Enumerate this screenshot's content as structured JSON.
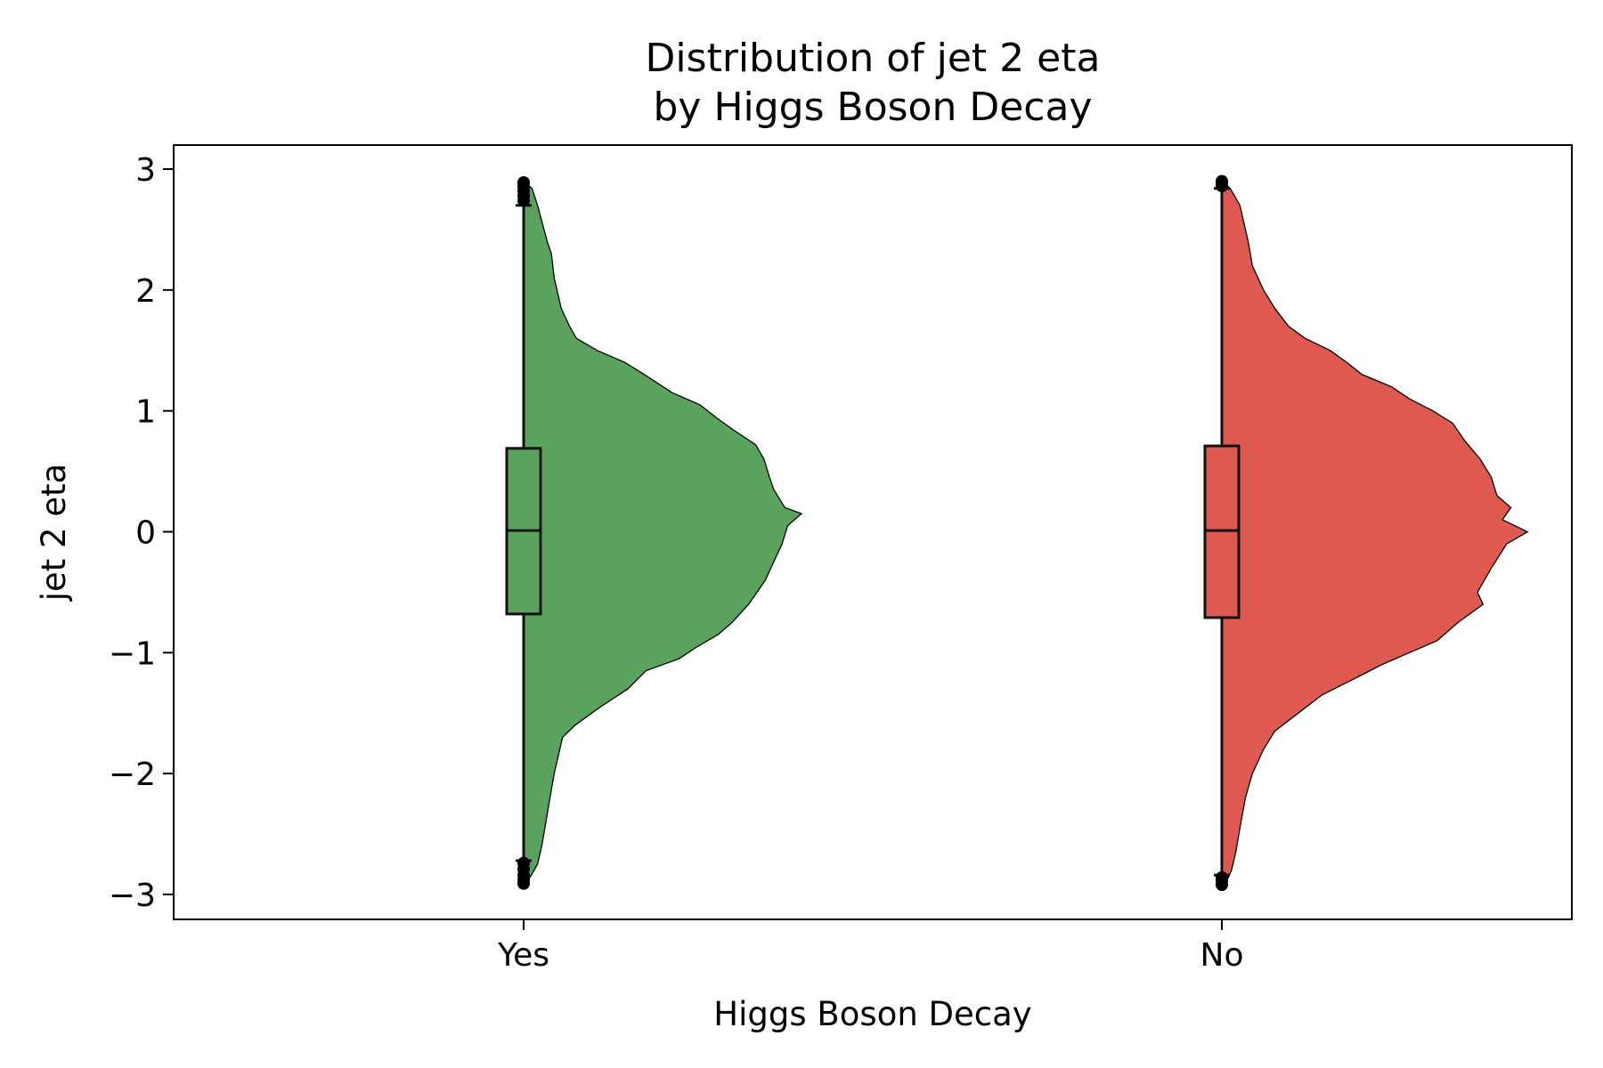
{
  "chart_data": {
    "type": "violin",
    "title": "Distribution of jet 2 eta",
    "subtitle": "by Higgs Boson Decay",
    "xlabel": "Higgs Boson Decay",
    "ylabel": "jet 2 eta",
    "ylim": [
      -3.2,
      3.2
    ],
    "yticks": [
      3,
      2,
      1,
      0,
      -1,
      -2,
      -3
    ],
    "ytick_labels": [
      "3",
      "2",
      "1",
      "0",
      "−1",
      "−2",
      "−3"
    ],
    "categories": [
      "Yes",
      "No"
    ],
    "series": [
      {
        "category": "Yes",
        "color": "#59a35c",
        "box": {
          "whisker_low": -2.72,
          "q1": -0.68,
          "median": 0.01,
          "q3": 0.69,
          "whisker_high": 2.7
        },
        "outliers": [
          2.74,
          2.78,
          2.82,
          2.86,
          2.89,
          -2.74,
          -2.79,
          -2.84,
          -2.88,
          -2.91
        ],
        "density": [
          [
            2.9,
            0.0
          ],
          [
            2.84,
            0.06
          ],
          [
            2.7,
            0.1
          ],
          [
            2.4,
            0.17
          ],
          [
            2.3,
            0.2
          ],
          [
            2.1,
            0.22
          ],
          [
            1.85,
            0.27
          ],
          [
            1.7,
            0.33
          ],
          [
            1.6,
            0.38
          ],
          [
            1.5,
            0.53
          ],
          [
            1.4,
            0.73
          ],
          [
            1.3,
            0.87
          ],
          [
            1.15,
            1.07
          ],
          [
            1.05,
            1.27
          ],
          [
            0.95,
            1.38
          ],
          [
            0.85,
            1.5
          ],
          [
            0.72,
            1.67
          ],
          [
            0.6,
            1.73
          ],
          [
            0.45,
            1.77
          ],
          [
            0.35,
            1.8
          ],
          [
            0.2,
            1.88
          ],
          [
            0.15,
            2.0
          ],
          [
            0.05,
            1.9
          ],
          [
            -0.1,
            1.86
          ],
          [
            -0.2,
            1.82
          ],
          [
            -0.4,
            1.74
          ],
          [
            -0.6,
            1.62
          ],
          [
            -0.75,
            1.5
          ],
          [
            -0.85,
            1.4
          ],
          [
            -0.95,
            1.25
          ],
          [
            -1.05,
            1.12
          ],
          [
            -1.15,
            0.88
          ],
          [
            -1.3,
            0.75
          ],
          [
            -1.45,
            0.55
          ],
          [
            -1.6,
            0.37
          ],
          [
            -1.7,
            0.28
          ],
          [
            -1.85,
            0.25
          ],
          [
            -2.0,
            0.22
          ],
          [
            -2.2,
            0.19
          ],
          [
            -2.4,
            0.16
          ],
          [
            -2.6,
            0.13
          ],
          [
            -2.75,
            0.1
          ],
          [
            -2.85,
            0.05
          ],
          [
            -2.92,
            0.0
          ]
        ]
      },
      {
        "category": "No",
        "color": "#de5a50",
        "box": {
          "whisker_low": -2.84,
          "q1": -0.71,
          "median": 0.01,
          "q3": 0.71,
          "whisker_high": 2.84
        },
        "outliers": [
          2.86,
          2.88,
          2.9,
          -2.86,
          -2.89,
          -2.92
        ],
        "density": [
          [
            2.9,
            0.0
          ],
          [
            2.84,
            0.06
          ],
          [
            2.7,
            0.13
          ],
          [
            2.4,
            0.19
          ],
          [
            2.2,
            0.22
          ],
          [
            2.0,
            0.3
          ],
          [
            1.85,
            0.38
          ],
          [
            1.7,
            0.48
          ],
          [
            1.6,
            0.6
          ],
          [
            1.5,
            0.78
          ],
          [
            1.4,
            0.9
          ],
          [
            1.3,
            1.01
          ],
          [
            1.2,
            1.22
          ],
          [
            1.1,
            1.35
          ],
          [
            1.0,
            1.52
          ],
          [
            0.9,
            1.66
          ],
          [
            0.75,
            1.75
          ],
          [
            0.6,
            1.86
          ],
          [
            0.45,
            1.94
          ],
          [
            0.3,
            1.98
          ],
          [
            0.2,
            2.08
          ],
          [
            0.1,
            2.02
          ],
          [
            0.0,
            2.2
          ],
          [
            -0.1,
            2.05
          ],
          [
            -0.3,
            1.94
          ],
          [
            -0.5,
            1.84
          ],
          [
            -0.6,
            1.88
          ],
          [
            -0.75,
            1.7
          ],
          [
            -0.9,
            1.55
          ],
          [
            -1.0,
            1.35
          ],
          [
            -1.1,
            1.15
          ],
          [
            -1.2,
            0.98
          ],
          [
            -1.35,
            0.72
          ],
          [
            -1.5,
            0.55
          ],
          [
            -1.65,
            0.38
          ],
          [
            -1.8,
            0.3
          ],
          [
            -2.0,
            0.22
          ],
          [
            -2.2,
            0.17
          ],
          [
            -2.45,
            0.13
          ],
          [
            -2.65,
            0.1
          ],
          [
            -2.8,
            0.07
          ],
          [
            -2.9,
            0.03
          ],
          [
            -2.93,
            0.0
          ]
        ]
      }
    ]
  }
}
